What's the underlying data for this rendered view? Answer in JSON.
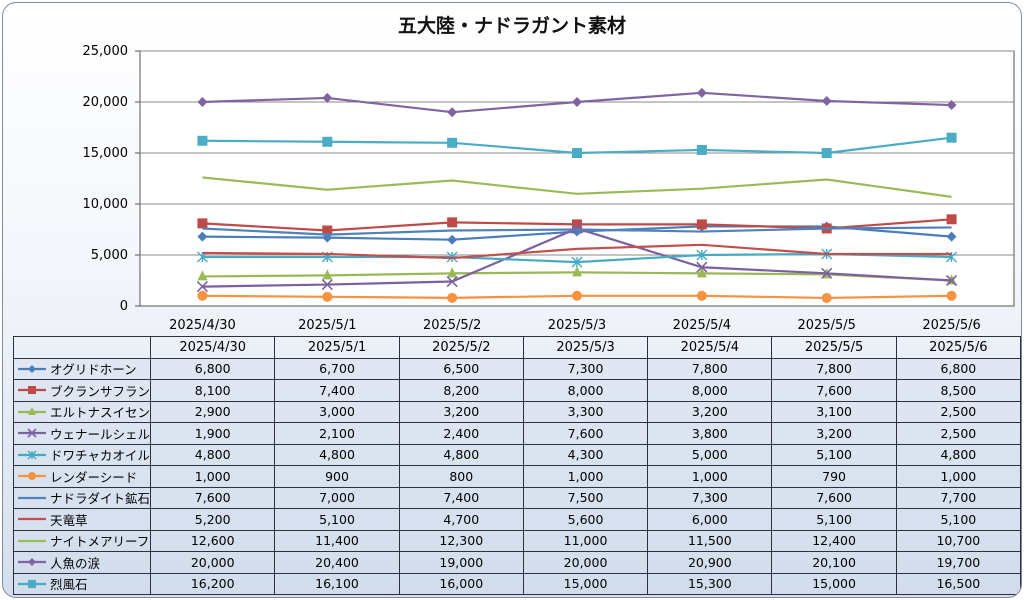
{
  "chart_data": {
    "type": "line",
    "title": "五大陸・ナドラガント素材",
    "categories": [
      "2025/4/30",
      "2025/5/1",
      "2025/5/2",
      "2025/5/3",
      "2025/5/4",
      "2025/5/5",
      "2025/5/6"
    ],
    "ylim": [
      0,
      25000
    ],
    "yticks": [
      "0",
      "5,000",
      "10,000",
      "15,000",
      "20,000",
      "25,000"
    ],
    "grid": true,
    "legend": "table-below",
    "series": [
      {
        "name": "オグリドホーン",
        "color": "#4a7ebb",
        "marker": "diamond",
        "values": [
          6800,
          6700,
          6500,
          7300,
          7800,
          7800,
          6800
        ],
        "labels": [
          "6,800",
          "6,700",
          "6,500",
          "7,300",
          "7,800",
          "7,800",
          "6,800"
        ]
      },
      {
        "name": "ブクランサフラン",
        "color": "#be4b48",
        "marker": "square",
        "values": [
          8100,
          7400,
          8200,
          8000,
          8000,
          7600,
          8500
        ],
        "labels": [
          "8,100",
          "7,400",
          "8,200",
          "8,000",
          "8,000",
          "7,600",
          "8,500"
        ]
      },
      {
        "name": "エルトナスイセン",
        "color": "#98b954",
        "marker": "triangle",
        "values": [
          2900,
          3000,
          3200,
          3300,
          3200,
          3100,
          2500
        ],
        "labels": [
          "2,900",
          "3,000",
          "3,200",
          "3,300",
          "3,200",
          "3,100",
          "2,500"
        ]
      },
      {
        "name": "ウェナールシェル",
        "color": "#7d60a0",
        "marker": "x",
        "values": [
          1900,
          2100,
          2400,
          7600,
          3800,
          3200,
          2500
        ],
        "labels": [
          "1,900",
          "2,100",
          "2,400",
          "7,600",
          "3,800",
          "3,200",
          "2,500"
        ]
      },
      {
        "name": "ドワチャカオイル",
        "color": "#46aac5",
        "marker": "star",
        "values": [
          4800,
          4800,
          4800,
          4300,
          5000,
          5100,
          4800
        ],
        "labels": [
          "4,800",
          "4,800",
          "4,800",
          "4,300",
          "5,000",
          "5,100",
          "4,800"
        ]
      },
      {
        "name": "レンダーシード",
        "color": "#f69240",
        "marker": "circle",
        "values": [
          1000,
          900,
          800,
          1000,
          1000,
          790,
          1000
        ],
        "labels": [
          "1,000",
          "900",
          "800",
          "1,000",
          "1,000",
          "790",
          "1,000"
        ]
      },
      {
        "name": "ナドラダイト鉱石",
        "color": "#4f81bd",
        "marker": "none",
        "values": [
          7600,
          7000,
          7400,
          7500,
          7300,
          7600,
          7700
        ],
        "labels": [
          "7,600",
          "7,000",
          "7,400",
          "7,500",
          "7,300",
          "7,600",
          "7,700"
        ]
      },
      {
        "name": "天竜草",
        "color": "#c0504d",
        "marker": "none",
        "values": [
          5200,
          5100,
          4700,
          5600,
          6000,
          5100,
          5100
        ],
        "labels": [
          "5,200",
          "5,100",
          "4,700",
          "5,600",
          "6,000",
          "5,100",
          "5,100"
        ]
      },
      {
        "name": "ナイトメアリーフ",
        "color": "#9bbb59",
        "marker": "none",
        "values": [
          12600,
          11400,
          12300,
          11000,
          11500,
          12400,
          10700
        ],
        "labels": [
          "12,600",
          "11,400",
          "12,300",
          "11,000",
          "11,500",
          "12,400",
          "10,700"
        ]
      },
      {
        "name": "人魚の涙",
        "color": "#8064a2",
        "marker": "diamond",
        "values": [
          20000,
          20400,
          19000,
          20000,
          20900,
          20100,
          19700
        ],
        "labels": [
          "20,000",
          "20,400",
          "19,000",
          "20,000",
          "20,900",
          "20,100",
          "19,700"
        ]
      },
      {
        "name": "烈風石",
        "color": "#4bacc6",
        "marker": "square",
        "values": [
          16200,
          16100,
          16000,
          15000,
          15300,
          15000,
          16500
        ],
        "labels": [
          "16,200",
          "16,100",
          "16,000",
          "15,000",
          "15,300",
          "15,000",
          "16,500"
        ]
      }
    ]
  }
}
